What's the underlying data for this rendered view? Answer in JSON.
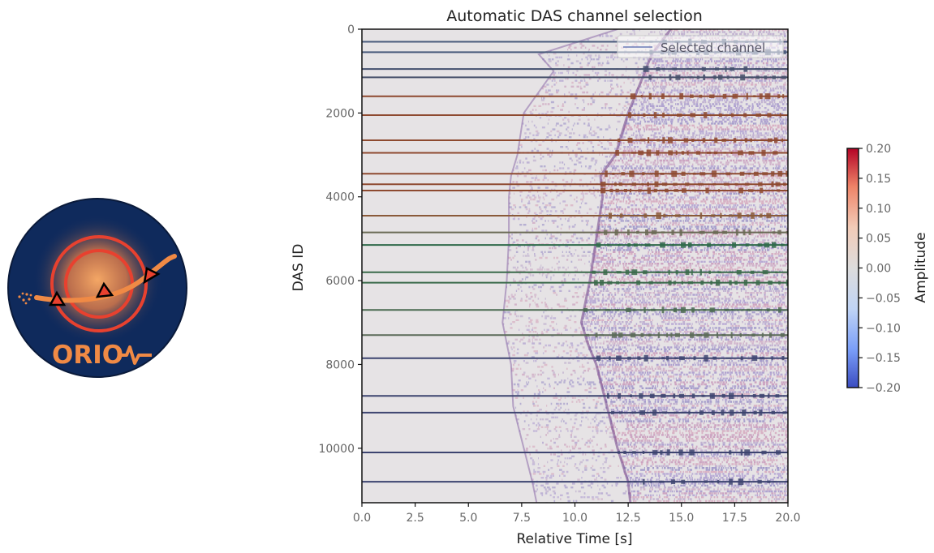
{
  "logo": {
    "text": "ORIO",
    "colors": {
      "disc": "#0f2a5c",
      "ring": "#e8412f",
      "glow": "#f19a5a",
      "path": "#f08a45",
      "text": "#f08a45"
    }
  },
  "chart_data": {
    "type": "heatmap",
    "title": "Automatic DAS channel selection",
    "xlabel": "Relative Time [s]",
    "ylabel": "DAS ID",
    "xlim": [
      0,
      20
    ],
    "ylim": [
      11300,
      0
    ],
    "xticks": [
      0.0,
      2.5,
      5.0,
      7.5,
      10.0,
      12.5,
      15.0,
      17.5,
      20.0
    ],
    "xtick_labels": [
      "0.0",
      "2.5",
      "5.0",
      "7.5",
      "10.0",
      "12.5",
      "15.0",
      "17.5",
      "20.0"
    ],
    "yticks": [
      0,
      2000,
      4000,
      6000,
      8000,
      10000
    ],
    "ytick_labels": [
      "0",
      "2000",
      "4000",
      "6000",
      "8000",
      "10000"
    ],
    "legend": {
      "label": "Selected channel",
      "placement": "upper-right"
    },
    "colorbar": {
      "label": "Amplitude",
      "vmin": -0.2,
      "vmax": 0.2,
      "ticks": [
        "0.20",
        "0.15",
        "0.10",
        "0.05",
        "0.00",
        "−0.05",
        "−0.10",
        "−0.15",
        "−0.20"
      ],
      "tick_values": [
        0.2,
        0.15,
        0.1,
        0.05,
        0.0,
        -0.05,
        -0.1,
        -0.15,
        -0.2
      ],
      "colormap": [
        "#3b4cc0",
        "#7b9ff9",
        "#c0d4f5",
        "#dddcdc",
        "#f2cbb7",
        "#ee8468",
        "#b40426"
      ]
    },
    "arrivals": [
      {
        "das_id": 0,
        "first_arrival": 12.0,
        "second_arrival": 14.5
      },
      {
        "das_id": 600,
        "first_arrival": 8.3,
        "second_arrival": 13.6
      },
      {
        "das_id": 1000,
        "first_arrival": 9.0,
        "second_arrival": 13.3
      },
      {
        "das_id": 2000,
        "first_arrival": 7.6,
        "second_arrival": 12.5
      },
      {
        "das_id": 3000,
        "first_arrival": 7.3,
        "second_arrival": 11.9
      },
      {
        "das_id": 3500,
        "first_arrival": 7.0,
        "second_arrival": 11.2
      },
      {
        "das_id": 4000,
        "first_arrival": 6.9,
        "second_arrival": 11.3
      },
      {
        "das_id": 5000,
        "first_arrival": 6.9,
        "second_arrival": 11.0
      },
      {
        "das_id": 6000,
        "first_arrival": 6.8,
        "second_arrival": 10.7
      },
      {
        "das_id": 7000,
        "first_arrival": 6.6,
        "second_arrival": 10.3
      },
      {
        "das_id": 7500,
        "first_arrival": 6.8,
        "second_arrival": 10.6
      },
      {
        "das_id": 8000,
        "first_arrival": 7.0,
        "second_arrival": 11.0
      },
      {
        "das_id": 9000,
        "first_arrival": 7.1,
        "second_arrival": 11.5
      },
      {
        "das_id": 10000,
        "first_arrival": 7.6,
        "second_arrival": 12.0
      },
      {
        "das_id": 10800,
        "first_arrival": 8.0,
        "second_arrival": 12.5
      },
      {
        "das_id": 11300,
        "first_arrival": 8.2,
        "second_arrival": 12.6
      }
    ],
    "selected_channels": [
      {
        "das_id": 300,
        "color": "#4a5b7c",
        "pick": 13.5
      },
      {
        "das_id": 550,
        "color": "#4a5b7c",
        "pick": 13.5
      },
      {
        "das_id": 950,
        "color": "#44506e",
        "pick": 13.2
      },
      {
        "das_id": 1150,
        "color": "#47506a",
        "pick": 13.2
      },
      {
        "das_id": 1600,
        "color": "#8e4a30",
        "pick": 12.6
      },
      {
        "das_id": 2050,
        "color": "#8e4a30",
        "pick": 12.5
      },
      {
        "das_id": 2650,
        "color": "#8e4a30",
        "pick": 12.0
      },
      {
        "das_id": 2950,
        "color": "#8e4a30",
        "pick": 11.9
      },
      {
        "das_id": 3450,
        "color": "#8e4a30",
        "pick": 11.4
      },
      {
        "das_id": 3700,
        "color": "#8e4a30",
        "pick": 11.2
      },
      {
        "das_id": 3850,
        "color": "#8e4a30",
        "pick": 11.2
      },
      {
        "das_id": 4450,
        "color": "#8a5a3a",
        "pick": 11.2
      },
      {
        "das_id": 4850,
        "color": "#6a6a55",
        "pick": 11.1
      },
      {
        "das_id": 5150,
        "color": "#2f6a4a",
        "pick": 11.0
      },
      {
        "das_id": 5800,
        "color": "#3a6a4a",
        "pick": 10.8
      },
      {
        "das_id": 6050,
        "color": "#3a6a4a",
        "pick": 10.9
      },
      {
        "das_id": 6700,
        "color": "#4a6a50",
        "pick": 10.4
      },
      {
        "das_id": 7300,
        "color": "#5a6a58",
        "pick": 10.5
      },
      {
        "das_id": 7850,
        "color": "#3d4470",
        "pick": 11.0
      },
      {
        "das_id": 8750,
        "color": "#3d4470",
        "pick": 11.5
      },
      {
        "das_id": 9150,
        "color": "#3d4470",
        "pick": 11.7
      },
      {
        "das_id": 10100,
        "color": "#3d4470",
        "pick": 12.0
      },
      {
        "das_id": 10800,
        "color": "#3d4470",
        "pick": 12.5
      }
    ]
  }
}
